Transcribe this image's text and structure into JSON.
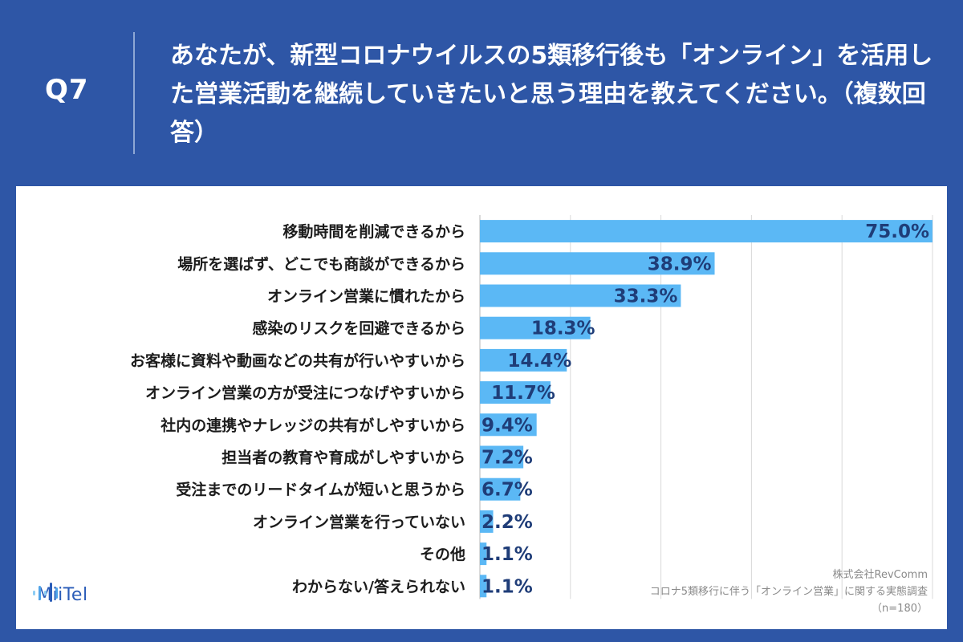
{
  "header": {
    "qnum": "Q7",
    "question": "あなたが、新型コロナウイルスの5類移行後も「オンライン」を活用した営業活動を継続していきたいと思う理由を教えてください。（複数回答）"
  },
  "chart_data": {
    "type": "bar",
    "orientation": "horizontal",
    "title": "",
    "xlabel": "",
    "ylabel": "",
    "xlim": [
      0,
      75
    ],
    "grid": true,
    "unit": "%",
    "categories": [
      "移動時間を削減できるから",
      "場所を選ばず、どこでも商談ができるから",
      "オンライン営業に慣れたから",
      "感染のリスクを回避できるから",
      "お客様に資料や動画などの共有が行いやすいから",
      "オンライン営業の方が受注につなげやすいから",
      "社内の連携やナレッジの共有がしやすいから",
      "担当者の教育や育成がしやすいから",
      "受注までのリードタイムが短いと思うから",
      "オンライン営業を行っていない",
      "その他",
      "わからない/答えられない"
    ],
    "values": [
      75.0,
      38.9,
      33.3,
      18.3,
      14.4,
      11.7,
      9.4,
      7.2,
      6.7,
      2.2,
      1.1,
      1.1
    ],
    "value_labels": [
      "75.0%",
      "38.9%",
      "33.3%",
      "18.3%",
      "14.4%",
      "11.7%",
      "9.4%",
      "7.2%",
      "6.7%",
      "2.2%",
      "1.1%",
      "1.1%"
    ],
    "bar_color": "#5bb8f5",
    "label_color": "#1f3d78"
  },
  "logo": {
    "text": "MiiTel"
  },
  "source": {
    "company": "株式会社RevComm",
    "survey": "コロナ5類移行に伴う「オンライン営業」に関する実態調査",
    "sample": "（n=180）"
  },
  "colors": {
    "background": "#2e56a6",
    "panel": "#ffffff",
    "grid": "#d9d9d9"
  }
}
